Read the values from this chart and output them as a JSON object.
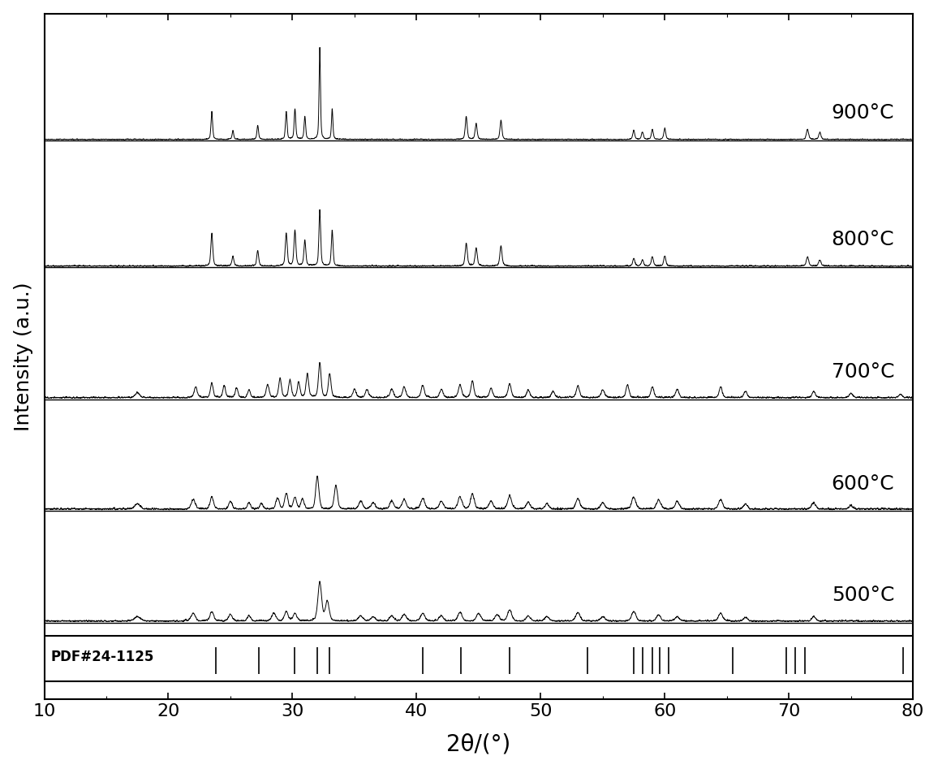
{
  "title": "",
  "xlabel": "2θ/(°)",
  "ylabel": "Intensity (a.u.)",
  "xlim": [
    10,
    80
  ],
  "temperatures": [
    "500°C",
    "600°C",
    "700°C",
    "800°C",
    "900°C"
  ],
  "offsets": [
    0,
    2.2,
    4.4,
    7.0,
    9.5
  ],
  "pdf_label": "PDF#24-1125",
  "pdf_peaks": [
    23.8,
    27.3,
    30.2,
    32.0,
    33.0,
    40.5,
    43.6,
    47.5,
    53.8,
    57.5,
    58.2,
    59.0,
    59.6,
    60.3,
    65.5,
    69.8,
    70.5,
    71.3,
    79.2
  ],
  "xticks": [
    10,
    20,
    30,
    40,
    50,
    60,
    70,
    80
  ],
  "label_fontsize": 18,
  "tick_fontsize": 16,
  "line_color": "black",
  "background_color": "white"
}
